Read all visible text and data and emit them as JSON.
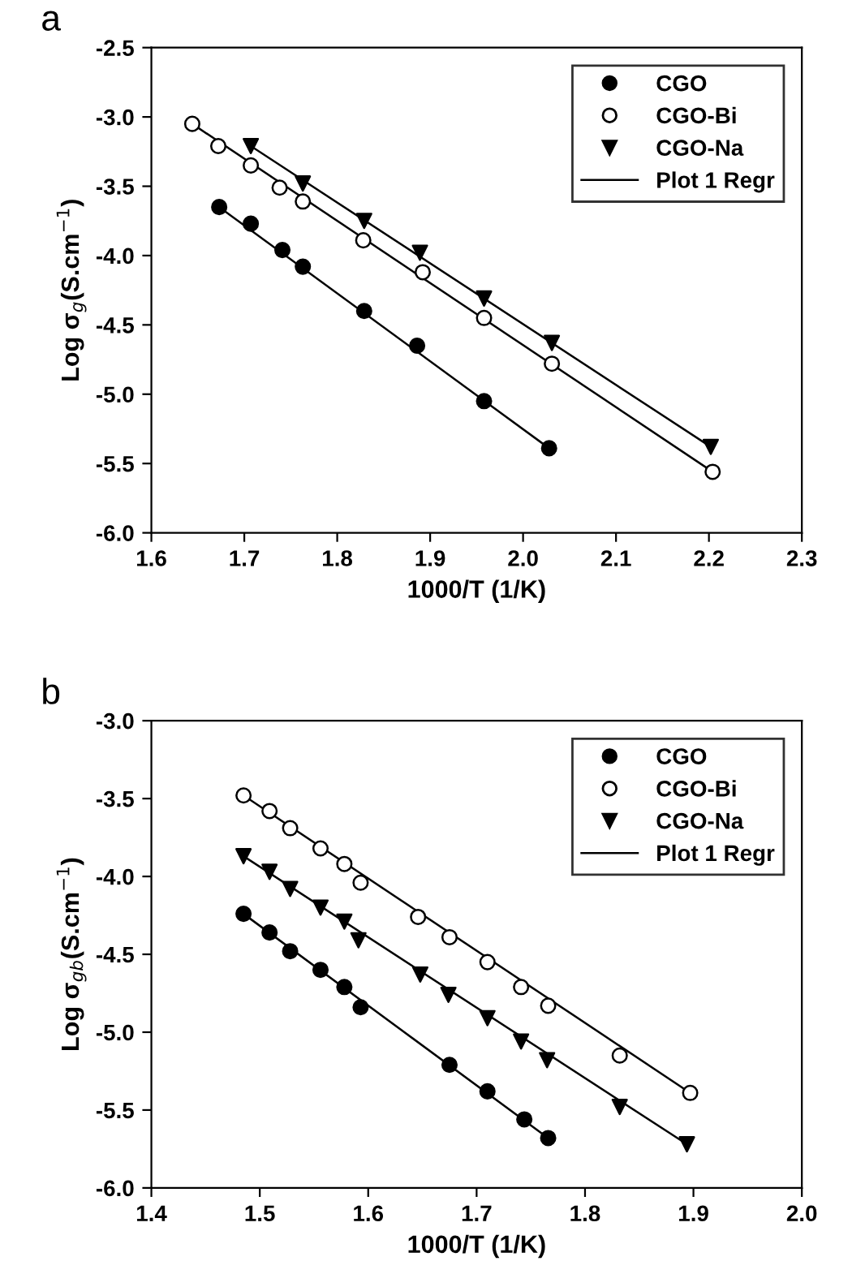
{
  "chart_data": [
    {
      "type": "scatter",
      "xlabel": "1000/T (1/K)",
      "ylabel": "Log σ$_{g}$(S.cm$^{−1}$)",
      "annotations": [
        "a"
      ],
      "xlim": [
        1.6,
        2.3
      ],
      "xticks": [
        1.6,
        1.7,
        1.8,
        1.9,
        {
          "value": 2,
          "label": "2.0"
        },
        2.1,
        2.2,
        2.3
      ],
      "ylim": [
        -6,
        -2.5
      ],
      "yticks": [
        {
          "value": -6,
          "label": "-6.0"
        },
        -5.5,
        {
          "value": -5,
          "label": "-5.0"
        },
        -4.5,
        {
          "value": -4,
          "label": "-4.0"
        },
        -3.5,
        {
          "value": -3,
          "label": "-3.0"
        },
        -2.5
      ],
      "legend": "top right",
      "grid": false,
      "series": [
        {
          "name": "CGO",
          "color": "#000000",
          "marker": "circle",
          "x": [
            1.673,
            1.707,
            1.741,
            1.763,
            1.829,
            1.886,
            1.958,
            2.028
          ],
          "values": [
            -3.65,
            -3.77,
            -3.96,
            -4.08,
            -4.4,
            -4.65,
            -5.05,
            -5.39
          ]
        },
        {
          "name": "CGO-Bi",
          "color": "#ffffff",
          "marker": "circle",
          "x": [
            1.644,
            1.672,
            1.707,
            1.738,
            1.763,
            1.828,
            1.892,
            1.958,
            2.031,
            2.204
          ],
          "values": [
            -3.05,
            -3.21,
            -3.35,
            -3.51,
            -3.61,
            -3.89,
            -4.12,
            -4.45,
            -4.78,
            -5.56
          ]
        },
        {
          "name": "CGO-Na",
          "color": "#000000",
          "marker": "triangle",
          "x": [
            1.707,
            1.763,
            1.829,
            1.889,
            1.958,
            2.031,
            2.202
          ],
          "values": [
            -3.21,
            -3.48,
            -3.75,
            -3.98,
            -4.31,
            -4.63,
            -5.38
          ]
        },
        {
          "name": "Plot 1 Regr",
          "type": "line",
          "color": "#000000",
          "marker": "none",
          "x": [
            1.673,
            2.028
          ],
          "values": [
            -3.65,
            -5.39
          ]
        },
        {
          "type": "line",
          "color": "#000000",
          "marker": "none",
          "x": [
            1.644,
            2.204
          ],
          "values": [
            -3.05,
            -5.56
          ]
        },
        {
          "type": "line",
          "color": "#000000",
          "marker": "none",
          "x": [
            1.707,
            2.202
          ],
          "values": [
            -3.21,
            -5.38
          ]
        }
      ]
    },
    {
      "type": "scatter",
      "xlabel": "1000/T (1/K)",
      "ylabel": "Log σ$_{gb}$(S.cm$^{−1}$)",
      "annotations": [
        "b"
      ],
      "xlim": [
        1.4,
        2.0
      ],
      "xticks": [
        1.4,
        1.5,
        1.6,
        1.7,
        1.8,
        1.9,
        {
          "value": 2,
          "label": "2.0"
        }
      ],
      "ylim": [
        -6,
        -3
      ],
      "yticks": [
        {
          "value": -6,
          "label": "-6.0"
        },
        -5.5,
        {
          "value": -5,
          "label": "-5.0"
        },
        -4.5,
        {
          "value": -4,
          "label": "-4.0"
        },
        -3.5,
        {
          "value": -3,
          "label": "-3.0"
        }
      ],
      "legend": "top right",
      "grid": false,
      "series": [
        {
          "name": "CGO",
          "color": "#000000",
          "marker": "circle",
          "x": [
            1.485,
            1.509,
            1.528,
            1.556,
            1.578,
            1.593,
            1.675,
            1.71,
            1.744,
            1.766
          ],
          "values": [
            -4.24,
            -4.36,
            -4.48,
            -4.6,
            -4.71,
            -4.84,
            -5.21,
            -5.38,
            -5.56,
            -5.68
          ]
        },
        {
          "name": "CGO-Bi",
          "color": "#ffffff",
          "marker": "circle",
          "x": [
            1.485,
            1.509,
            1.528,
            1.556,
            1.578,
            1.593,
            1.646,
            1.675,
            1.71,
            1.741,
            1.766,
            1.832,
            1.897
          ],
          "values": [
            -3.48,
            -3.58,
            -3.69,
            -3.82,
            -3.92,
            -4.04,
            -4.26,
            -4.39,
            -4.55,
            -4.71,
            -4.83,
            -5.15,
            -5.39
          ]
        },
        {
          "name": "CGO-Na",
          "color": "#000000",
          "marker": "triangle",
          "x": [
            1.485,
            1.509,
            1.528,
            1.556,
            1.578,
            1.591,
            1.648,
            1.674,
            1.71,
            1.741,
            1.765,
            1.832,
            1.894
          ],
          "values": [
            -3.87,
            -3.97,
            -4.08,
            -4.2,
            -4.29,
            -4.41,
            -4.63,
            -4.76,
            -4.91,
            -5.06,
            -5.18,
            -5.48,
            -5.72
          ]
        },
        {
          "name": "Plot 1 Regr",
          "type": "line",
          "color": "#000000",
          "marker": "none",
          "x": [
            1.485,
            1.766
          ],
          "values": [
            -4.24,
            -5.68
          ]
        },
        {
          "type": "line",
          "color": "#000000",
          "marker": "none",
          "x": [
            1.485,
            1.897
          ],
          "values": [
            -3.48,
            -5.39
          ]
        },
        {
          "type": "line",
          "color": "#000000",
          "marker": "none",
          "x": [
            1.485,
            1.894
          ],
          "values": [
            -3.87,
            -5.72
          ]
        }
      ]
    }
  ]
}
